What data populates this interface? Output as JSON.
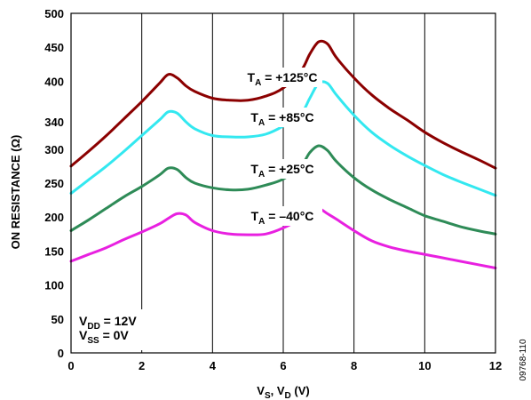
{
  "chart_data": {
    "type": "line",
    "xlabel": {
      "main": "V",
      "sub1": "S",
      "sep": ", V",
      "sub2": "D",
      "unit": " (V)"
    },
    "ylabel": "ON RESISTANCE (Ω)",
    "xlim": [
      0,
      12
    ],
    "ylim": [
      0,
      500
    ],
    "xticks": [
      0,
      2,
      4,
      6,
      8,
      10,
      12
    ],
    "yticks": [
      0,
      50,
      100,
      150,
      200,
      250,
      300,
      340,
      400,
      450,
      500
    ],
    "grid": true,
    "x": [
      0,
      0.5,
      1,
      1.5,
      2,
      2.5,
      2.75,
      3,
      3.25,
      3.5,
      4,
      4.5,
      5,
      5.5,
      6,
      6.5,
      6.75,
      7,
      7.25,
      7.5,
      8,
      8.5,
      9,
      9.5,
      10,
      10.5,
      11,
      11.5,
      12
    ],
    "series": [
      {
        "name": "+125°C",
        "color": "#8b0000",
        "values": [
          275,
          297,
          320,
          345,
          370,
          397,
          410,
          405,
          393,
          385,
          375,
          372,
          372,
          378,
          390,
          415,
          440,
          458,
          455,
          435,
          405,
          380,
          360,
          343,
          325,
          310,
          297,
          285,
          272
        ]
      },
      {
        "name": "+85°C",
        "color": "#33e8f0",
        "values": [
          235,
          255,
          275,
          297,
          320,
          343,
          355,
          353,
          340,
          330,
          320,
          318,
          318,
          322,
          334,
          352,
          375,
          397,
          397,
          380,
          350,
          325,
          306,
          290,
          276,
          263,
          252,
          242,
          232
        ]
      },
      {
        "name": "+25°C",
        "color": "#2e8b57",
        "values": [
          180,
          196,
          213,
          230,
          245,
          262,
          272,
          270,
          258,
          250,
          243,
          240,
          241,
          247,
          256,
          275,
          295,
          305,
          298,
          282,
          258,
          240,
          226,
          214,
          202,
          194,
          186,
          180,
          175
        ]
      },
      {
        "name": "–40°C",
        "color": "#e820e0",
        "values": [
          135,
          145,
          155,
          167,
          178,
          190,
          198,
          205,
          203,
          192,
          180,
          175,
          174,
          175,
          184,
          198,
          212,
          213,
          205,
          197,
          180,
          165,
          156,
          150,
          145,
          140,
          135,
          130,
          125
        ]
      }
    ],
    "annotations": [
      {
        "prefix": "T",
        "sub": "A",
        "rest": " = +125°C"
      },
      {
        "prefix": "T",
        "sub": "A",
        "rest": " = +85°C"
      },
      {
        "prefix": "T",
        "sub": "A",
        "rest": " = +25°C"
      },
      {
        "prefix": "T",
        "sub": "A",
        "rest": " = –40°C"
      }
    ],
    "conditions": [
      {
        "prefix": "V",
        "sub": "DD",
        "rest": " = 12V"
      },
      {
        "prefix": "V",
        "sub": "SS",
        "rest": " = 0V"
      }
    ],
    "figure_id": "09768-110"
  }
}
